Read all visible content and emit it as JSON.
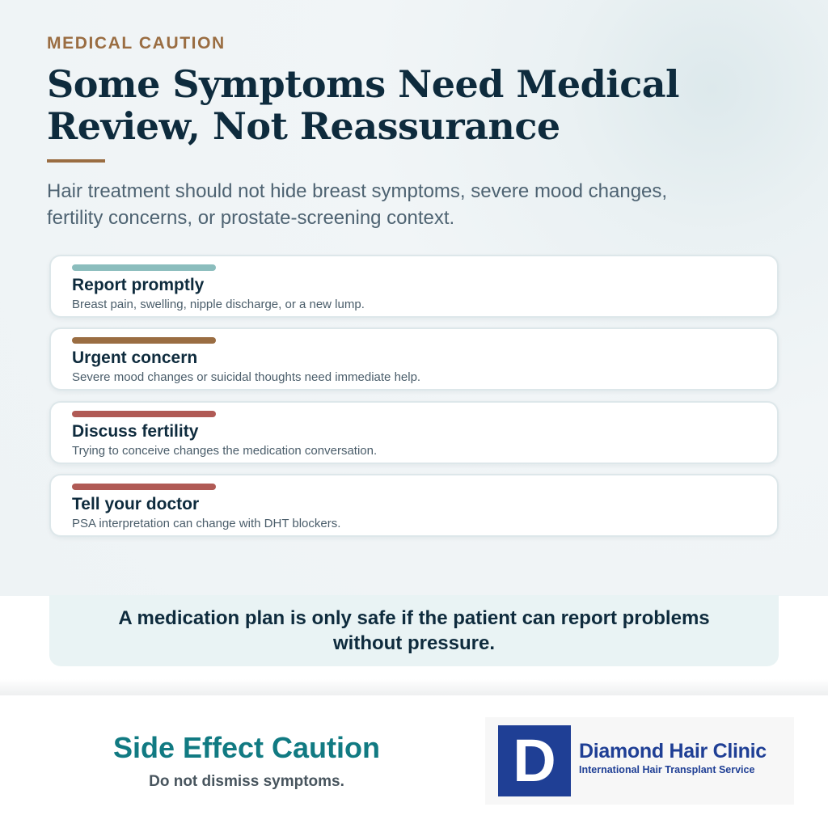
{
  "header": {
    "eyebrow": "MEDICAL CAUTION",
    "title_line1": "Some Symptoms Need Medical",
    "title_line2": "Review, Not Reassurance",
    "subtitle_line1": "Hair treatment should not hide breast symptoms, severe mood changes,",
    "subtitle_line2": "fertility concerns, or prostate-screening context.",
    "accent_color": "#9a6d42"
  },
  "cards": [
    {
      "title": "Report promptly",
      "description": "Breast pain, swelling, nipple discharge, or a new lump.",
      "bar_color": "#8bbdbd"
    },
    {
      "title": "Urgent concern",
      "description": "Severe mood changes or suicidal thoughts need immediate help.",
      "bar_color": "#9a6d42"
    },
    {
      "title": "Discuss fertility",
      "description": "Trying to conceive changes the medication conversation.",
      "bar_color": "#b05a55"
    },
    {
      "title": "Tell your doctor",
      "description": "PSA interpretation can change with DHT blockers.",
      "bar_color": "#b05a55"
    }
  ],
  "callout": {
    "text_line1": "A medication plan is only safe if the patient can report problems",
    "text_line2": "without pressure."
  },
  "footer": {
    "title": "Side Effect Caution",
    "subtitle": "Do not dismiss symptoms.",
    "logo": {
      "letter": "D",
      "name": "Diamond Hair Clinic",
      "tagline": "International Hair Transplant Service",
      "brand_color": "#1f3f95"
    }
  }
}
